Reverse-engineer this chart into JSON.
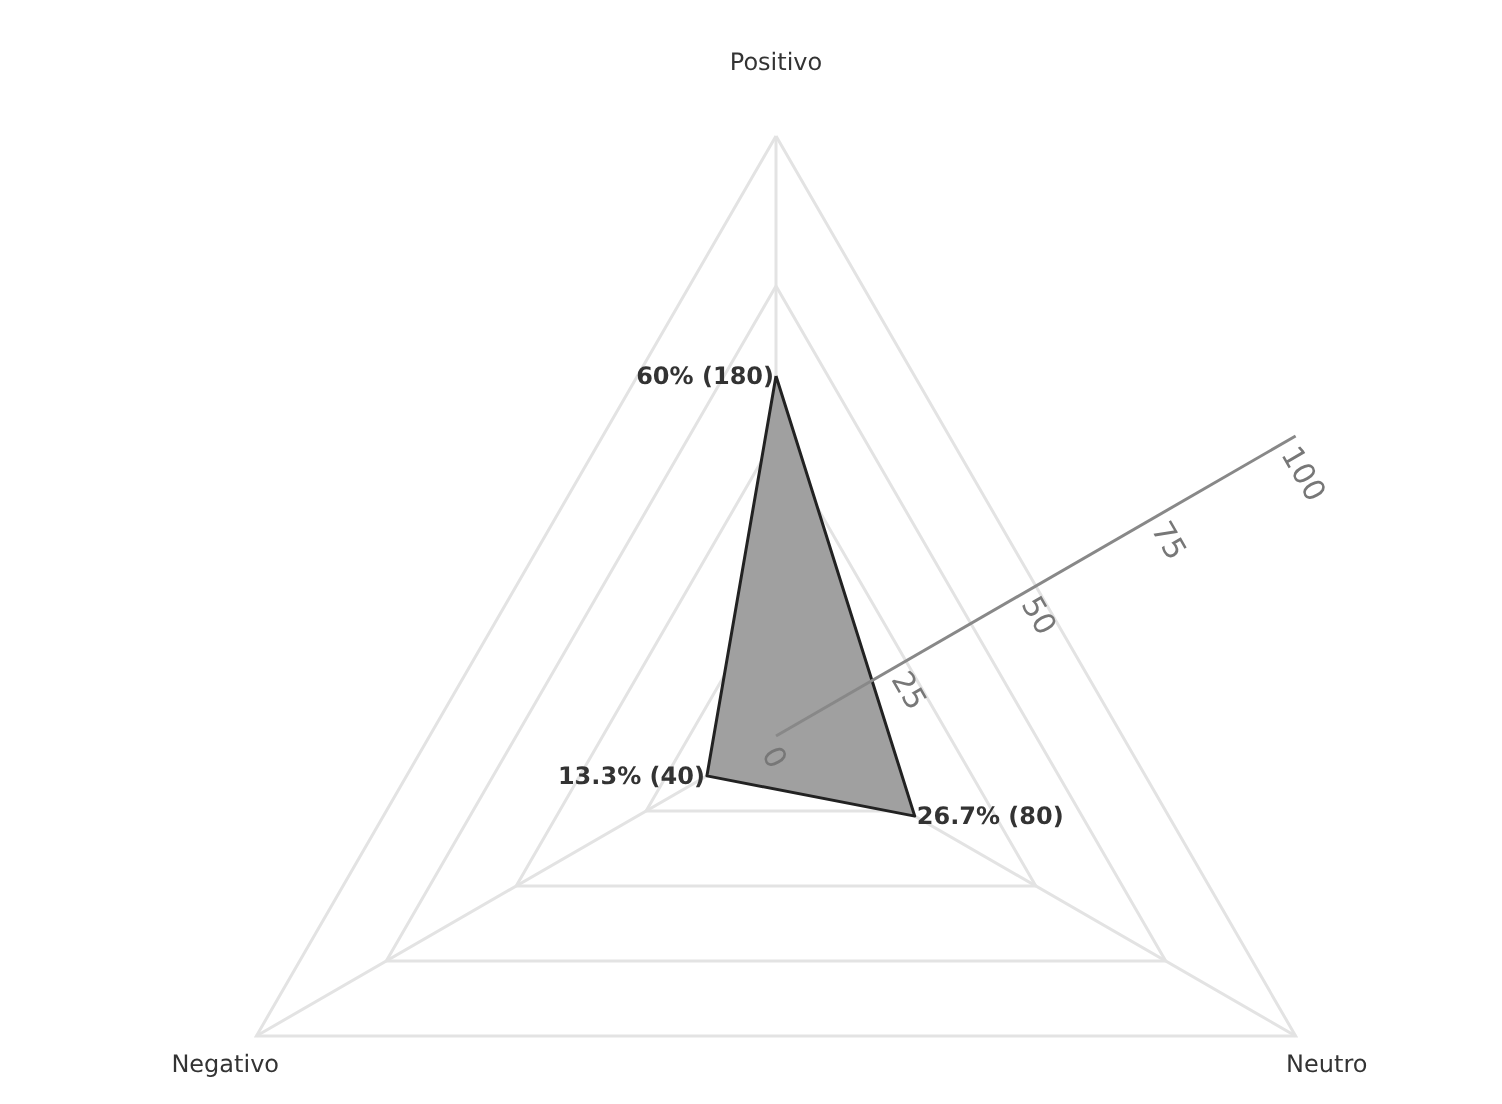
{
  "chart_data": {
    "type": "radar",
    "categories": [
      "Positivo",
      "Neutro",
      "Negativo"
    ],
    "series": [
      {
        "color": "#a0a0a0",
        "values": [
          60,
          26.7,
          13.3
        ],
        "value_labels": [
          "60% (180)",
          "26.7% (80)",
          "13.3% (40)"
        ]
      }
    ],
    "ylim": [
      0,
      100
    ],
    "yticks": [
      0,
      25,
      50,
      75,
      100
    ],
    "grid": true
  }
}
